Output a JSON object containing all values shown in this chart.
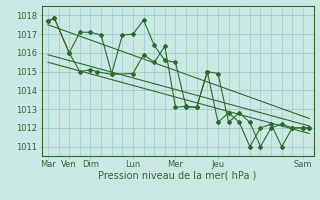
{
  "background_color": "#cce8e4",
  "grid_color": "#99cccc",
  "line_color": "#2d6b2d",
  "marker_color": "#2d6b2d",
  "xlabel": "Pression niveau de la mer( hPa )",
  "ylim": [
    1010.5,
    1018.5
  ],
  "yticks": [
    1011,
    1012,
    1013,
    1014,
    1015,
    1016,
    1017,
    1018
  ],
  "xtick_positions": [
    0,
    1,
    2,
    4,
    6,
    8,
    12
  ],
  "xtick_labels": [
    "Mar",
    "Ven",
    "Dim",
    "Lun",
    "Mer",
    "Jeu",
    "Sam"
  ],
  "xlim": [
    -0.3,
    12.5
  ],
  "line1_x": [
    0,
    0.3,
    1,
    1.5,
    2,
    2.5,
    3,
    3.5,
    4,
    4.5,
    5,
    5.5,
    6,
    6.5,
    7,
    7.5,
    8,
    8.5,
    9,
    9.5,
    10,
    10.5,
    11,
    11.5,
    12,
    12.3
  ],
  "line1_y": [
    1017.7,
    1017.85,
    1016.0,
    1017.1,
    1017.1,
    1016.95,
    1014.9,
    1016.95,
    1017.0,
    1017.75,
    1016.4,
    1015.6,
    1015.5,
    1013.1,
    1013.1,
    1015.0,
    1014.9,
    1012.3,
    1012.8,
    1012.3,
    1011.0,
    1012.0,
    1012.2,
    1012.0,
    1012.0,
    1012.0
  ],
  "line2_x": [
    0,
    0.3,
    1,
    1.5,
    2,
    2.3,
    3,
    4,
    4.5,
    5,
    5.5,
    6,
    6.5,
    7,
    7.5,
    8,
    8.5,
    9,
    9.5,
    10,
    10.5,
    11,
    11.5,
    12,
    12.3
  ],
  "line2_y": [
    1017.7,
    1017.85,
    1016.0,
    1015.0,
    1015.1,
    1015.0,
    1014.85,
    1014.9,
    1015.9,
    1015.5,
    1016.35,
    1013.1,
    1013.15,
    1013.1,
    1015.0,
    1012.3,
    1012.8,
    1012.3,
    1011.0,
    1012.0,
    1012.2,
    1011.0,
    1012.0,
    1012.0,
    1012.0
  ],
  "trend1_x": [
    0,
    12.3
  ],
  "trend1_y": [
    1017.5,
    1012.5
  ],
  "trend2_x": [
    0,
    12.3
  ],
  "trend2_y": [
    1015.9,
    1012.1
  ],
  "trend3_x": [
    0,
    12.3
  ],
  "trend3_y": [
    1015.5,
    1011.7
  ],
  "fontsize_tick": 6,
  "fontsize_xlabel": 7
}
